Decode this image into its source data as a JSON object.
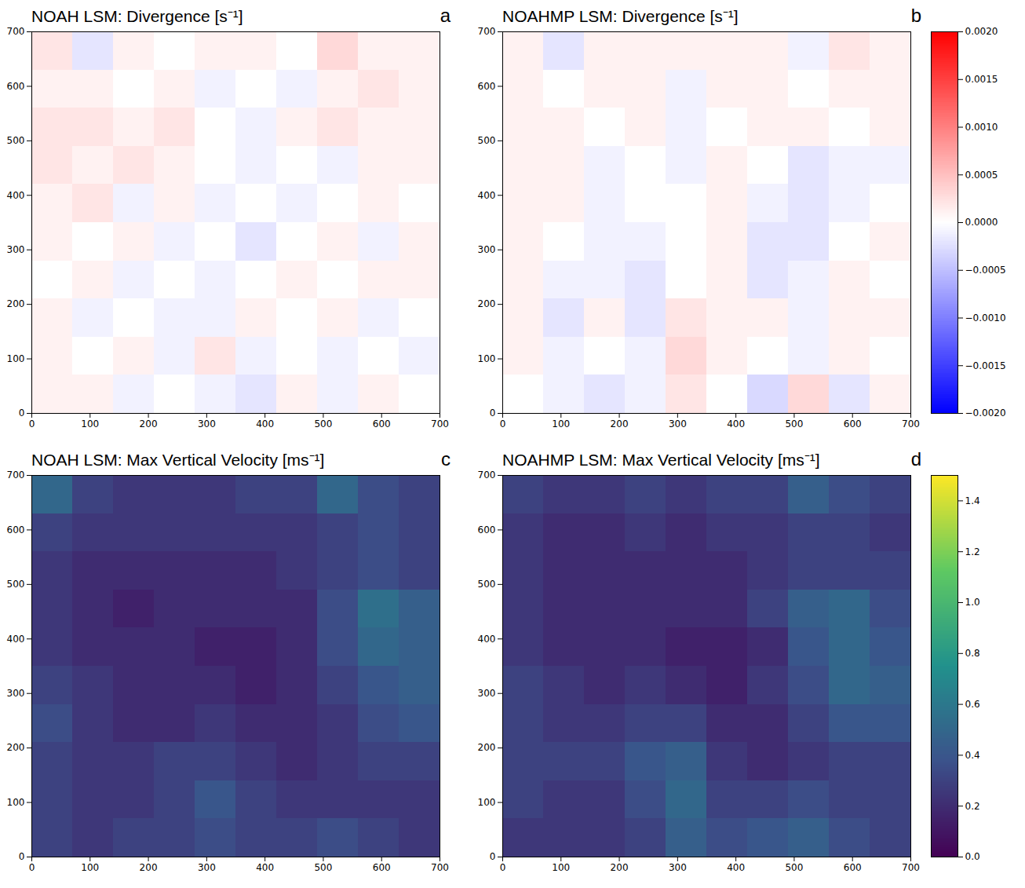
{
  "chart_data": [
    {
      "type": "heatmap",
      "colorbar": {
        "range": [
          -0.002,
          0.002
        ],
        "ticks": [
          {
            "value": 0.002,
            "label": "0.0020"
          },
          {
            "value": 0.0015,
            "label": "0.0015"
          },
          {
            "value": 0.001,
            "label": "0.0010"
          },
          {
            "value": 0.0005,
            "label": "0.0005"
          },
          {
            "value": 0,
            "label": "0.0000"
          },
          {
            "value": -0.0005,
            "label": "−0.0005"
          },
          {
            "value": -0.001,
            "label": "−0.0010"
          },
          {
            "value": -0.0015,
            "label": "−0.0015"
          },
          {
            "value": -0.002,
            "label": "−0.0020"
          }
        ],
        "colors": [
          "#0000ff",
          "#ffffff",
          "#ff0000"
        ]
      },
      "panels": [
        {
          "title": "NOAH LSM: Divergence [s⁻¹]",
          "panel": "a",
          "xlim": [
            0,
            700
          ],
          "ylim": [
            0,
            700
          ],
          "xticks": [
            0,
            100,
            200,
            300,
            400,
            500,
            600,
            700
          ],
          "yticks": [
            0,
            100,
            200,
            300,
            400,
            500,
            600,
            700
          ],
          "x_edges": [
            0,
            70,
            140,
            210,
            280,
            350,
            420,
            490,
            560,
            630,
            700
          ],
          "y_edges": [
            0,
            70,
            140,
            210,
            280,
            350,
            420,
            490,
            560,
            630,
            700
          ],
          "cells": [
            [
              0.0001,
              0.0001,
              -0.0001,
              0,
              -0.0001,
              -0.0002,
              0.0001,
              -0.0001,
              0.0001,
              0
            ],
            [
              0.0001,
              0,
              0.0001,
              -0.0001,
              0.0002,
              -0.0001,
              0,
              -0.0001,
              0,
              -0.0001
            ],
            [
              0.0001,
              -0.0001,
              0,
              -0.0001,
              -0.0001,
              0.0001,
              0,
              0.0001,
              -0.0001,
              0
            ],
            [
              0,
              0.0001,
              -0.0001,
              0,
              -0.0001,
              0,
              0.0001,
              0,
              0.0001,
              0.0001
            ],
            [
              0.0001,
              0,
              0.0001,
              -0.0001,
              0,
              -0.0002,
              0,
              0.0001,
              -0.0001,
              0.0001
            ],
            [
              0.0001,
              0.0002,
              -0.0001,
              0.0001,
              -0.0001,
              0,
              -0.0001,
              0,
              0.0001,
              0
            ],
            [
              0.0002,
              0.0001,
              0.0002,
              0.0001,
              0,
              -0.0001,
              0,
              -0.0001,
              0.0001,
              0.0001
            ],
            [
              0.0002,
              0.0002,
              0.0001,
              0.0002,
              0,
              -0.0001,
              0.0001,
              0.0002,
              0.0001,
              0.0001
            ],
            [
              0.0001,
              0.0001,
              0,
              0.0001,
              -0.0001,
              0,
              -0.0001,
              0.0001,
              0.0002,
              0.0001
            ],
            [
              0.0002,
              -0.0002,
              0.0001,
              0,
              0.0001,
              0.0001,
              0,
              0.0003,
              0.0001,
              0.0001
            ]
          ]
        },
        {
          "title": "NOAHMP LSM: Divergence [s⁻¹]",
          "panel": "b",
          "xlim": [
            0,
            700
          ],
          "ylim": [
            0,
            700
          ],
          "xticks": [
            0,
            100,
            200,
            300,
            400,
            500,
            600,
            700
          ],
          "yticks": [
            0,
            100,
            200,
            300,
            400,
            500,
            600,
            700
          ],
          "x_edges": [
            0,
            70,
            140,
            210,
            280,
            350,
            420,
            490,
            560,
            630,
            700
          ],
          "y_edges": [
            0,
            70,
            140,
            210,
            280,
            350,
            420,
            490,
            560,
            630,
            700
          ],
          "cells": [
            [
              0,
              -0.0001,
              -0.0002,
              -0.0001,
              0.0002,
              0,
              -0.0003,
              0.0003,
              -0.0002,
              0.0001
            ],
            [
              0.0001,
              -0.0001,
              0,
              -0.0001,
              0.0003,
              0.0001,
              0,
              -0.0001,
              0.0001,
              0
            ],
            [
              0.0001,
              -0.0002,
              0.0001,
              -0.0002,
              0.0002,
              0.0001,
              0.0001,
              -0.0001,
              0.0001,
              0.0001
            ],
            [
              0.0001,
              -0.0001,
              -0.0001,
              -0.0002,
              0,
              0.0001,
              -0.0002,
              -0.0001,
              0.0001,
              0
            ],
            [
              0.0001,
              0,
              -0.0001,
              -0.0001,
              0,
              0.0001,
              -0.0002,
              -0.0002,
              0,
              0.0001
            ],
            [
              0.0001,
              0.0001,
              -0.0001,
              0,
              0,
              0.0001,
              -0.0001,
              -0.0002,
              -0.0001,
              0
            ],
            [
              0.0001,
              0.0001,
              -0.0001,
              0,
              -0.0001,
              0.0001,
              0,
              -0.0002,
              -0.0001,
              -0.0001
            ],
            [
              0.0001,
              0.0001,
              0,
              0.0001,
              -0.0001,
              0,
              0.0001,
              0.0001,
              0,
              0.0001
            ],
            [
              0.0001,
              0,
              0.0001,
              0.0001,
              -0.0001,
              0.0001,
              0.0001,
              0,
              0.0001,
              0.0001
            ],
            [
              0.0001,
              -0.0002,
              0.0001,
              0.0001,
              0.0001,
              0.0001,
              0.0001,
              -0.0001,
              0.0002,
              0.0001
            ]
          ]
        }
      ]
    },
    {
      "type": "heatmap",
      "colorbar": {
        "range": [
          0,
          1.5
        ],
        "ticks": [
          {
            "value": 0,
            "label": "0.0"
          },
          {
            "value": 0.2,
            "label": "0.2"
          },
          {
            "value": 0.4,
            "label": "0.4"
          },
          {
            "value": 0.6,
            "label": "0.6"
          },
          {
            "value": 0.8,
            "label": "0.8"
          },
          {
            "value": 1,
            "label": "1.0"
          },
          {
            "value": 1.2,
            "label": "1.2"
          },
          {
            "value": 1.4,
            "label": "1.4"
          }
        ],
        "colors": [
          "#440154",
          "#3b528b",
          "#21918c",
          "#5ec962",
          "#fde725"
        ]
      },
      "panels": [
        {
          "title": "NOAH LSM: Max Vertical Velocity [ms⁻¹]",
          "panel": "c",
          "xlim": [
            0,
            700
          ],
          "ylim": [
            0,
            700
          ],
          "xticks": [
            0,
            100,
            200,
            300,
            400,
            500,
            600,
            700
          ],
          "yticks": [
            0,
            100,
            200,
            300,
            400,
            500,
            600,
            700
          ],
          "x_edges": [
            0,
            70,
            140,
            210,
            280,
            350,
            420,
            490,
            560,
            630,
            700
          ],
          "y_edges": [
            0,
            70,
            140,
            210,
            280,
            350,
            420,
            490,
            560,
            630,
            700
          ],
          "cells": [
            [
              0.3,
              0.25,
              0.3,
              0.3,
              0.35,
              0.3,
              0.3,
              0.35,
              0.3,
              0.25
            ],
            [
              0.3,
              0.25,
              0.25,
              0.3,
              0.4,
              0.3,
              0.25,
              0.25,
              0.25,
              0.25
            ],
            [
              0.3,
              0.25,
              0.25,
              0.3,
              0.3,
              0.25,
              0.2,
              0.25,
              0.3,
              0.3
            ],
            [
              0.35,
              0.25,
              0.2,
              0.2,
              0.25,
              0.2,
              0.2,
              0.25,
              0.35,
              0.4
            ],
            [
              0.3,
              0.25,
              0.2,
              0.2,
              0.2,
              0.15,
              0.2,
              0.3,
              0.4,
              0.45
            ],
            [
              0.25,
              0.2,
              0.2,
              0.2,
              0.15,
              0.15,
              0.2,
              0.35,
              0.5,
              0.45
            ],
            [
              0.25,
              0.2,
              0.15,
              0.2,
              0.2,
              0.2,
              0.2,
              0.35,
              0.55,
              0.45
            ],
            [
              0.25,
              0.2,
              0.2,
              0.2,
              0.2,
              0.2,
              0.25,
              0.3,
              0.35,
              0.3
            ],
            [
              0.3,
              0.25,
              0.25,
              0.25,
              0.25,
              0.25,
              0.25,
              0.3,
              0.35,
              0.3
            ],
            [
              0.5,
              0.3,
              0.25,
              0.25,
              0.25,
              0.3,
              0.3,
              0.5,
              0.35,
              0.3
            ]
          ]
        },
        {
          "title": "NOAHMP LSM: Max Vertical Velocity [ms⁻¹]",
          "panel": "d",
          "xlim": [
            0,
            700
          ],
          "ylim": [
            0,
            700
          ],
          "xticks": [
            0,
            100,
            200,
            300,
            400,
            500,
            600,
            700
          ],
          "yticks": [
            0,
            100,
            200,
            300,
            400,
            500,
            600,
            700
          ],
          "x_edges": [
            0,
            70,
            140,
            210,
            280,
            350,
            420,
            490,
            560,
            630,
            700
          ],
          "y_edges": [
            0,
            70,
            140,
            210,
            280,
            350,
            420,
            490,
            560,
            630,
            700
          ],
          "cells": [
            [
              0.25,
              0.25,
              0.25,
              0.3,
              0.45,
              0.35,
              0.4,
              0.45,
              0.35,
              0.3
            ],
            [
              0.3,
              0.25,
              0.25,
              0.35,
              0.5,
              0.3,
              0.3,
              0.35,
              0.3,
              0.3
            ],
            [
              0.3,
              0.3,
              0.3,
              0.4,
              0.45,
              0.25,
              0.2,
              0.25,
              0.3,
              0.3
            ],
            [
              0.3,
              0.25,
              0.25,
              0.3,
              0.3,
              0.2,
              0.2,
              0.3,
              0.4,
              0.4
            ],
            [
              0.3,
              0.25,
              0.2,
              0.25,
              0.2,
              0.15,
              0.25,
              0.35,
              0.5,
              0.45
            ],
            [
              0.25,
              0.2,
              0.2,
              0.2,
              0.15,
              0.15,
              0.2,
              0.4,
              0.5,
              0.4
            ],
            [
              0.25,
              0.2,
              0.2,
              0.2,
              0.2,
              0.2,
              0.3,
              0.45,
              0.5,
              0.35
            ],
            [
              0.25,
              0.2,
              0.2,
              0.2,
              0.2,
              0.2,
              0.25,
              0.3,
              0.3,
              0.3
            ],
            [
              0.25,
              0.2,
              0.2,
              0.25,
              0.2,
              0.25,
              0.25,
              0.3,
              0.3,
              0.25
            ],
            [
              0.3,
              0.25,
              0.25,
              0.3,
              0.25,
              0.3,
              0.3,
              0.45,
              0.35,
              0.3
            ]
          ]
        }
      ]
    }
  ]
}
